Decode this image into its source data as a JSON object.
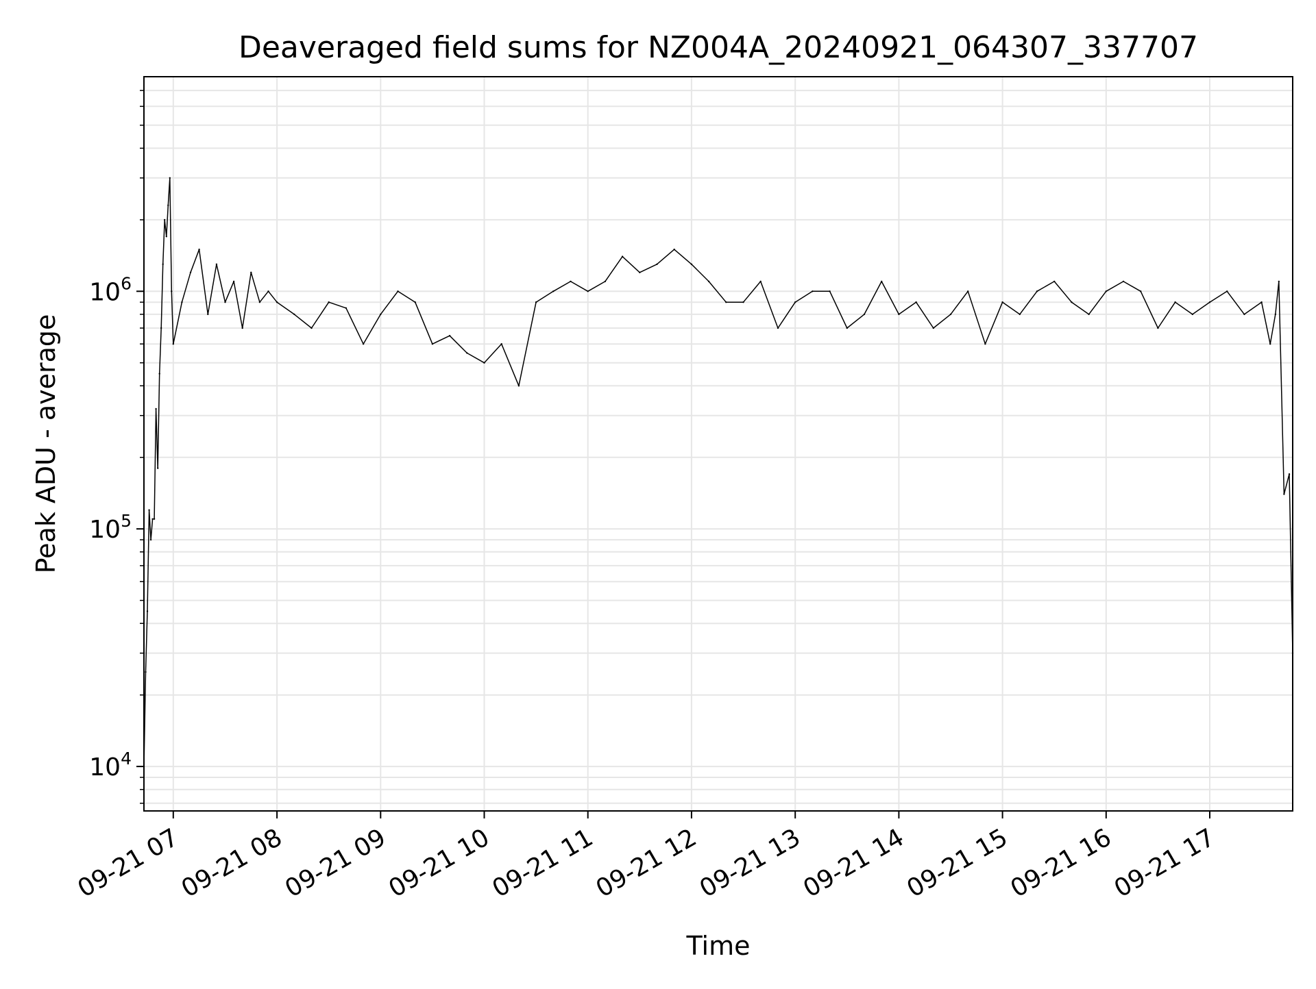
{
  "chart_data": {
    "type": "line",
    "title": "Deaveraged field sums for NZ004A_20240921_064307_337707",
    "xlabel": "Time",
    "ylabel": "Peak ADU - average",
    "yscale": "log",
    "ylim": [
      6500,
      8000000
    ],
    "xlim": [
      "2024-09-21T06:43:00",
      "2024-09-21T17:48:00"
    ],
    "grid": true,
    "grid_color": "#e6e6e6",
    "line_color": "#000000",
    "x_ticks": [
      {
        "value": "2024-09-21T07:00:00",
        "label": "09-21 07"
      },
      {
        "value": "2024-09-21T08:00:00",
        "label": "09-21 08"
      },
      {
        "value": "2024-09-21T09:00:00",
        "label": "09-21 09"
      },
      {
        "value": "2024-09-21T10:00:00",
        "label": "09-21 10"
      },
      {
        "value": "2024-09-21T11:00:00",
        "label": "09-21 11"
      },
      {
        "value": "2024-09-21T12:00:00",
        "label": "09-21 12"
      },
      {
        "value": "2024-09-21T13:00:00",
        "label": "09-21 13"
      },
      {
        "value": "2024-09-21T14:00:00",
        "label": "09-21 14"
      },
      {
        "value": "2024-09-21T15:00:00",
        "label": "09-21 15"
      },
      {
        "value": "2024-09-21T16:00:00",
        "label": "09-21 16"
      },
      {
        "value": "2024-09-21T17:00:00",
        "label": "09-21 17"
      }
    ],
    "y_ticks": [
      {
        "value": 10000,
        "base": "10",
        "exp": "4"
      },
      {
        "value": 100000,
        "base": "10",
        "exp": "5"
      },
      {
        "value": 1000000,
        "base": "10",
        "exp": "6"
      }
    ],
    "series": [
      {
        "x": [
          "2024-09-21T06:43:00",
          "2024-09-21T06:44:00",
          "2024-09-21T06:45:00",
          "2024-09-21T06:46:00",
          "2024-09-21T06:47:00",
          "2024-09-21T06:48:00",
          "2024-09-21T06:49:00",
          "2024-09-21T06:50:00",
          "2024-09-21T06:51:00",
          "2024-09-21T06:52:00",
          "2024-09-21T06:53:00",
          "2024-09-21T06:54:00",
          "2024-09-21T06:55:00",
          "2024-09-21T06:56:00",
          "2024-09-21T06:57:00",
          "2024-09-21T06:58:00",
          "2024-09-21T06:59:00",
          "2024-09-21T07:00:00",
          "2024-09-21T07:05:00",
          "2024-09-21T07:10:00",
          "2024-09-21T07:15:00",
          "2024-09-21T07:20:00",
          "2024-09-21T07:25:00",
          "2024-09-21T07:30:00",
          "2024-09-21T07:35:00",
          "2024-09-21T07:40:00",
          "2024-09-21T07:45:00",
          "2024-09-21T07:50:00",
          "2024-09-21T07:55:00",
          "2024-09-21T08:00:00",
          "2024-09-21T08:10:00",
          "2024-09-21T08:20:00",
          "2024-09-21T08:30:00",
          "2024-09-21T08:40:00",
          "2024-09-21T08:50:00",
          "2024-09-21T09:00:00",
          "2024-09-21T09:10:00",
          "2024-09-21T09:20:00",
          "2024-09-21T09:30:00",
          "2024-09-21T09:40:00",
          "2024-09-21T09:50:00",
          "2024-09-21T10:00:00",
          "2024-09-21T10:10:00",
          "2024-09-21T10:20:00",
          "2024-09-21T10:30:00",
          "2024-09-21T10:40:00",
          "2024-09-21T10:50:00",
          "2024-09-21T11:00:00",
          "2024-09-21T11:10:00",
          "2024-09-21T11:20:00",
          "2024-09-21T11:30:00",
          "2024-09-21T11:40:00",
          "2024-09-21T11:50:00",
          "2024-09-21T12:00:00",
          "2024-09-21T12:10:00",
          "2024-09-21T12:20:00",
          "2024-09-21T12:30:00",
          "2024-09-21T12:40:00",
          "2024-09-21T12:50:00",
          "2024-09-21T13:00:00",
          "2024-09-21T13:10:00",
          "2024-09-21T13:20:00",
          "2024-09-21T13:30:00",
          "2024-09-21T13:40:00",
          "2024-09-21T13:50:00",
          "2024-09-21T14:00:00",
          "2024-09-21T14:10:00",
          "2024-09-21T14:20:00",
          "2024-09-21T14:30:00",
          "2024-09-21T14:40:00",
          "2024-09-21T14:50:00",
          "2024-09-21T15:00:00",
          "2024-09-21T15:10:00",
          "2024-09-21T15:20:00",
          "2024-09-21T15:30:00",
          "2024-09-21T15:40:00",
          "2024-09-21T15:50:00",
          "2024-09-21T16:00:00",
          "2024-09-21T16:10:00",
          "2024-09-21T16:20:00",
          "2024-09-21T16:30:00",
          "2024-09-21T16:40:00",
          "2024-09-21T16:50:00",
          "2024-09-21T17:00:00",
          "2024-09-21T17:10:00",
          "2024-09-21T17:20:00",
          "2024-09-21T17:30:00",
          "2024-09-21T17:35:00",
          "2024-09-21T17:38:00",
          "2024-09-21T17:40:00",
          "2024-09-21T17:43:00",
          "2024-09-21T17:46:00",
          "2024-09-21T17:48:00"
        ],
        "y": [
          10000,
          25000,
          45000,
          120000,
          90000,
          110000,
          110000,
          320000,
          180000,
          450000,
          700000,
          1300000,
          2000000,
          1700000,
          2300000,
          3000000,
          1000000,
          600000,
          900000,
          1200000,
          1500000,
          800000,
          1300000,
          900000,
          1100000,
          700000,
          1200000,
          900000,
          1000000,
          900000,
          800000,
          700000,
          900000,
          850000,
          600000,
          800000,
          1000000,
          900000,
          600000,
          650000,
          550000,
          500000,
          600000,
          400000,
          900000,
          1000000,
          1100000,
          1000000,
          1100000,
          1400000,
          1200000,
          1300000,
          1500000,
          1300000,
          1100000,
          900000,
          900000,
          1100000,
          700000,
          900000,
          1000000,
          1000000,
          700000,
          800000,
          1100000,
          800000,
          900000,
          700000,
          800000,
          1000000,
          600000,
          900000,
          800000,
          1000000,
          1100000,
          900000,
          800000,
          1000000,
          1100000,
          1000000,
          700000,
          900000,
          800000,
          900000,
          1000000,
          800000,
          900000,
          600000,
          800000,
          1100000,
          140000,
          170000,
          30000
        ]
      }
    ]
  }
}
